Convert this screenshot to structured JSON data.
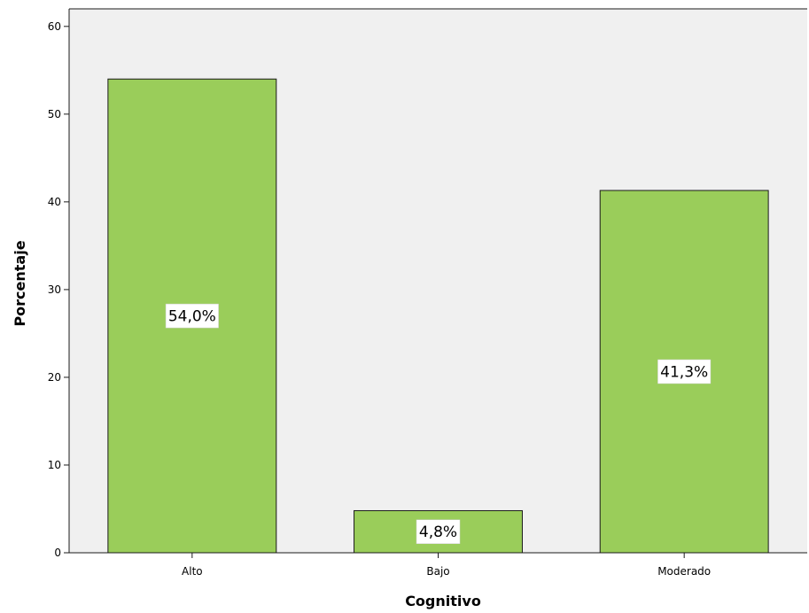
{
  "chart_data": {
    "type": "bar",
    "categories": [
      "Alto",
      "Bajo",
      "Moderado"
    ],
    "values": [
      54.0,
      4.8,
      41.3
    ],
    "data_labels": [
      "54,0%",
      "4,8%",
      "41,3%"
    ],
    "title": "",
    "xlabel": "Cognitivo",
    "ylabel": "Porcentaje",
    "ylim": [
      0,
      62
    ],
    "yticks": [
      0,
      10,
      20,
      30,
      40,
      50,
      60
    ],
    "grid": false,
    "legend": "none",
    "colors": {
      "bar_fill": "#9ACD5A",
      "bar_stroke": "#1a1a1a",
      "plot_background": "#F0F0F0",
      "label_box": "#FFFFFF"
    }
  }
}
